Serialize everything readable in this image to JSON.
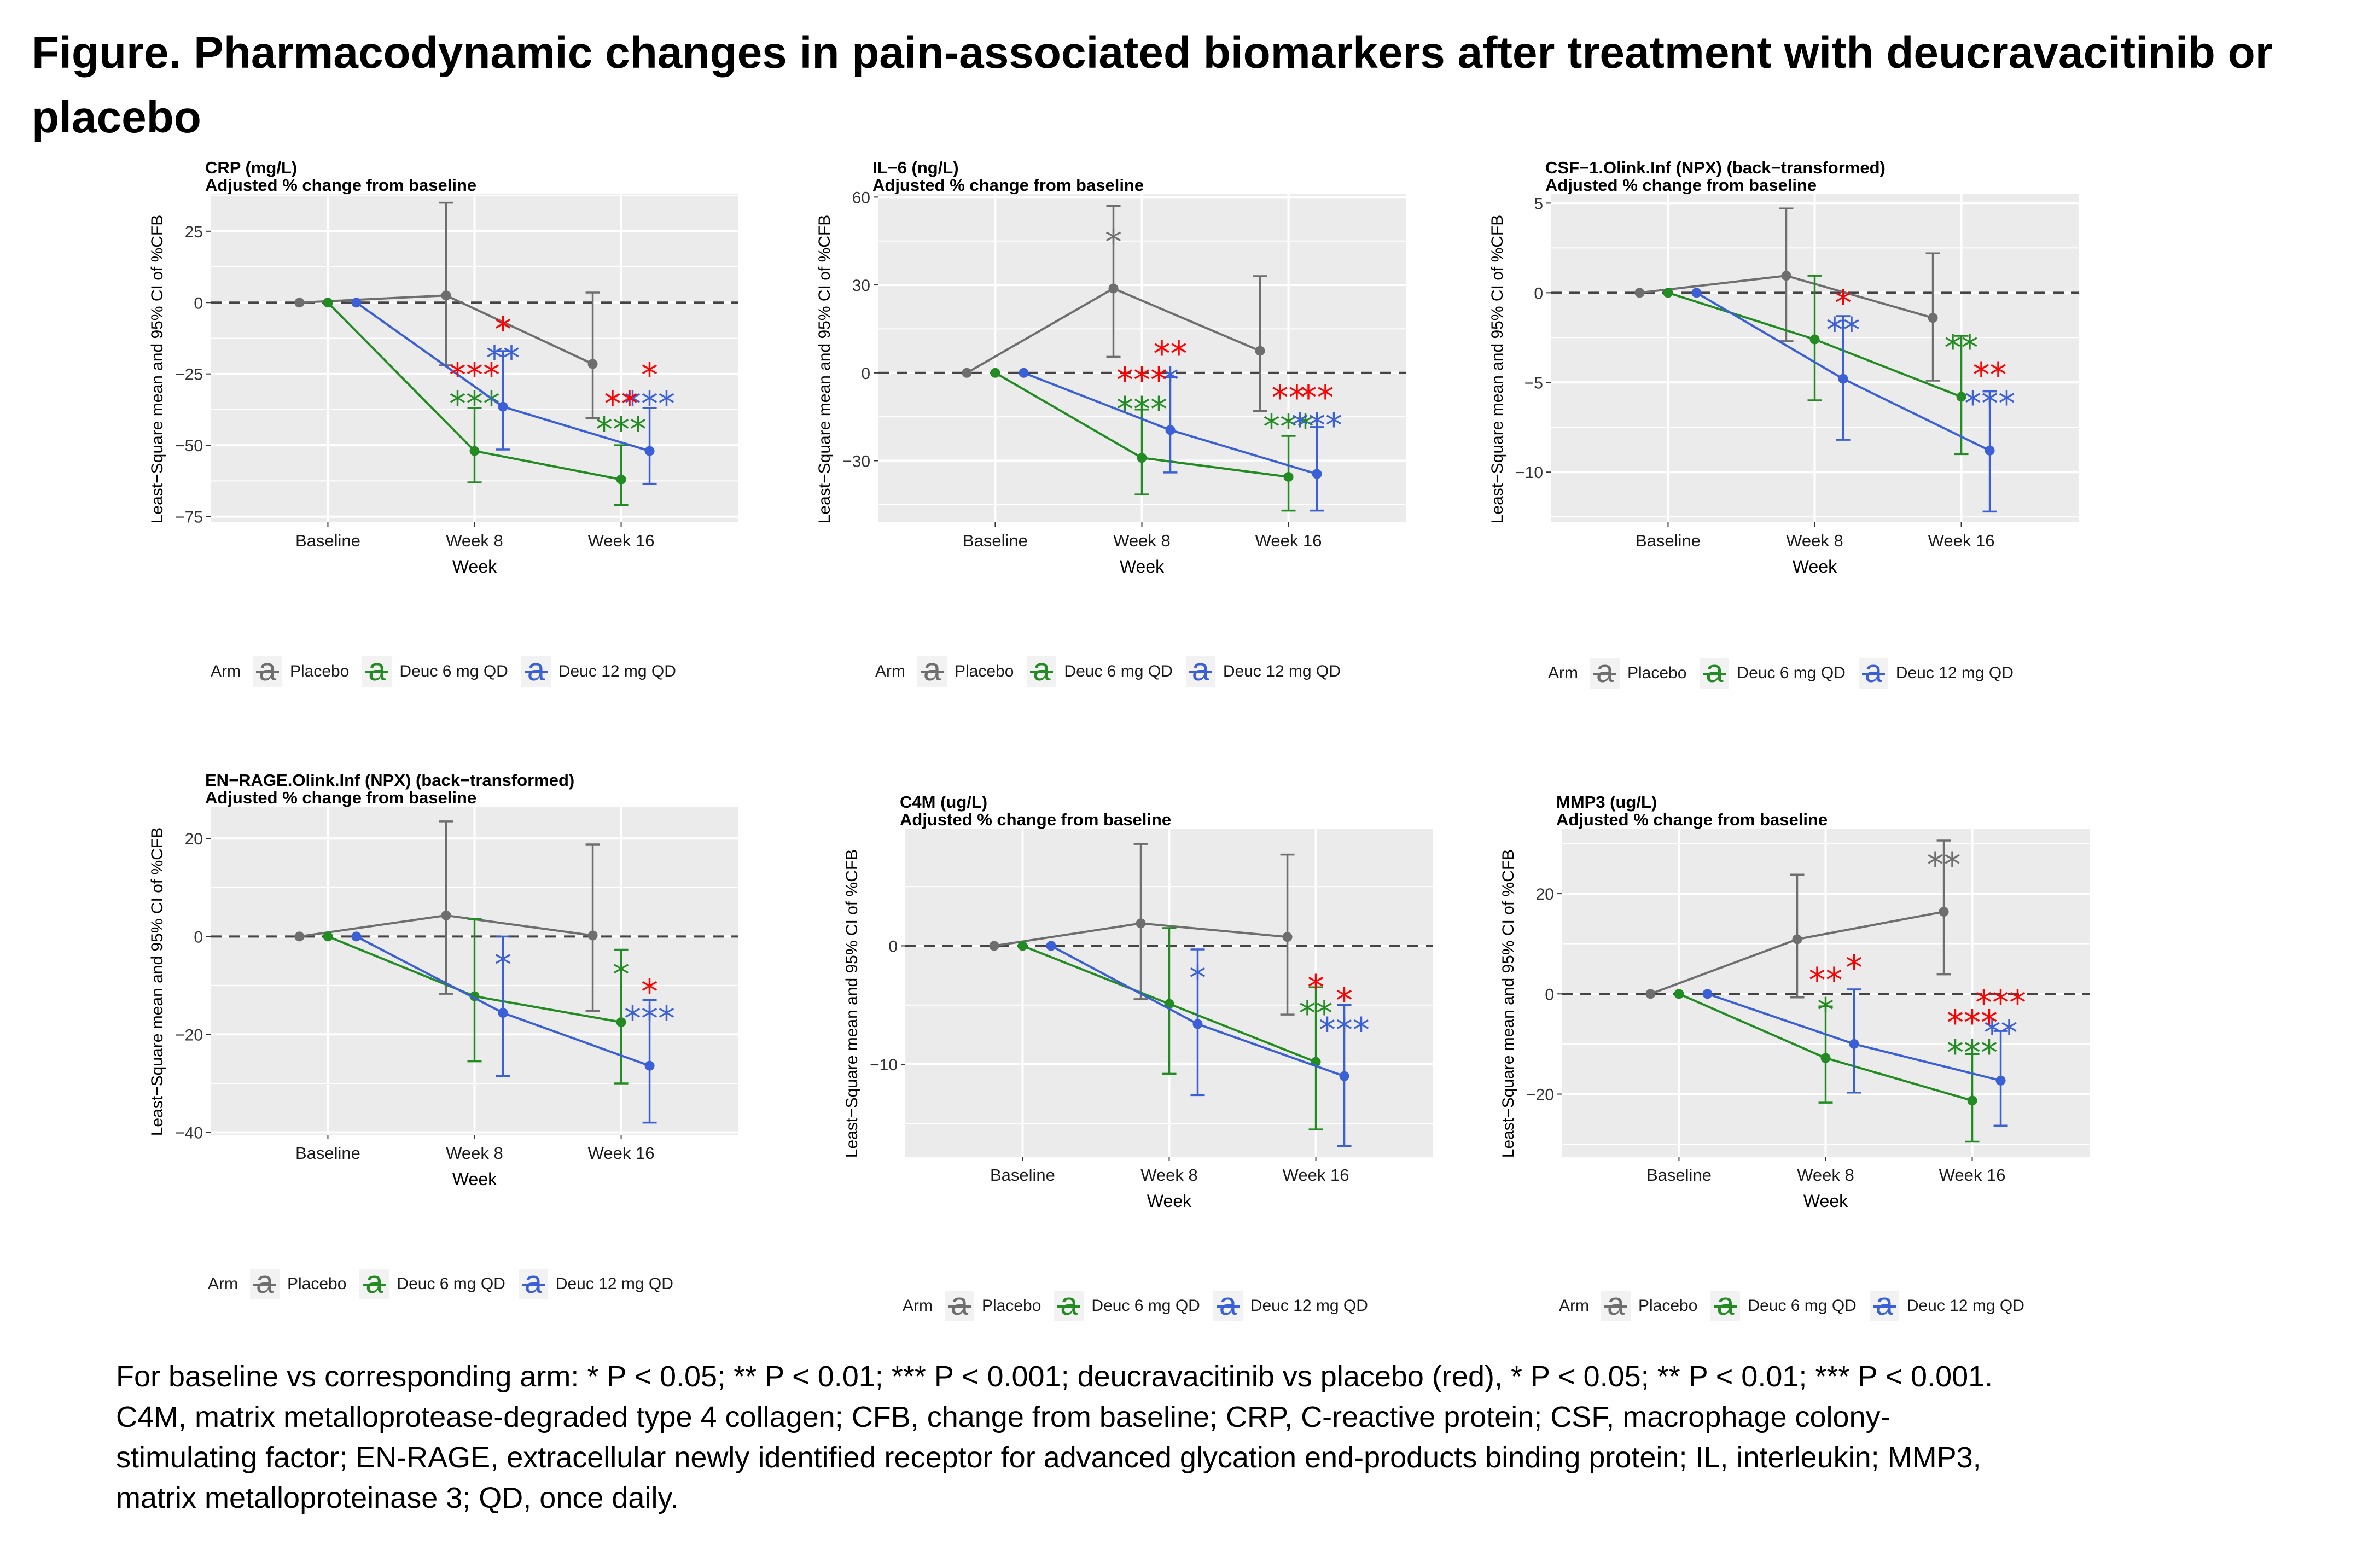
{
  "figure": {
    "title": "Figure. Pharmacodynamic changes in pain-associated biomarkers after treatment with deucravacitinib or placebo",
    "footnote_lines": [
      "For baseline vs corresponding arm: * P < 0.05; ** P < 0.01; *** P < 0.001; deucravacitinib vs placebo (red), * P < 0.05; ** P < 0.01; *** P < 0.001.",
      "C4M, matrix metalloprotease-degraded type 4 collagen; CFB, change from baseline; CRP, C-reactive protein; CSF, macrophage colony-",
      "stimulating factor; EN-RAGE, extracellular newly identified receptor for advanced glycation end-products binding protein; IL, interleukin; MMP3,",
      "matrix metalloproteinase 3; QD, once daily."
    ]
  },
  "legend": {
    "title": "Arm",
    "glyph": "a",
    "entries": [
      {
        "name": "Placebo",
        "color": "#6e6e6e"
      },
      {
        "name": "Deuc 6 mg QD",
        "color": "#228b22"
      },
      {
        "name": "Deuc 12 mg QD",
        "color": "#3b5fd6"
      }
    ]
  },
  "colors": {
    "placebo": "#6e6e6e",
    "deuc6": "#228b22",
    "deuc12": "#3b5fd6",
    "significance_vs_placebo": "#ff0000",
    "panel_bg": "#ebebeb",
    "grid": "#ffffff"
  },
  "chart_data": [
    {
      "type": "line",
      "title": "CRP (mg/L)",
      "subtitle": "Adjusted % change from baseline",
      "xlabel": "Week",
      "ylabel": "Least−Square mean and 95% CI of %CFB",
      "categories": [
        "Baseline",
        "Week 8",
        "Week 16"
      ],
      "ylim": [
        -77,
        38
      ],
      "yticks": [
        -75,
        -50,
        -25,
        0,
        25
      ],
      "ytick_labels": [
        "−75",
        "−50",
        "−25",
        "0",
        "25"
      ],
      "reference_line": 0,
      "series": [
        {
          "name": "Placebo",
          "values": [
            0,
            2.5,
            -21.5
          ],
          "ci_low": [
            null,
            -22,
            -40.5
          ],
          "ci_high": [
            null,
            35,
            3.5
          ],
          "stars": [
            "",
            "",
            ""
          ],
          "star_pos": [
            null,
            null,
            null
          ]
        },
        {
          "name": "Deuc 6 mg QD",
          "values": [
            0,
            -52,
            -62
          ],
          "ci_low": [
            null,
            -63,
            -71
          ],
          "ci_high": [
            null,
            -37,
            -50
          ],
          "stars": [
            "",
            "***",
            "***"
          ],
          "star_pos": [
            null,
            -35,
            -44
          ]
        },
        {
          "name": "Deuc 12 mg QD",
          "values": [
            0,
            -36.5,
            -52
          ],
          "ci_low": [
            null,
            -51.5,
            -63.5
          ],
          "ci_high": [
            null,
            -17,
            -37
          ],
          "stars": [
            "",
            "**",
            "***"
          ],
          "star_pos": [
            null,
            -19,
            -35
          ]
        }
      ],
      "red_stars": [
        {
          "x": "Week 8",
          "arm": "Deuc 6 mg QD",
          "label": "***",
          "y": -25
        },
        {
          "x": "Week 8",
          "arm": "Deuc 12 mg QD",
          "label": "*",
          "y": -9
        },
        {
          "x": "Week 16",
          "arm": "Deuc 6 mg QD",
          "label": "**",
          "y": -35
        },
        {
          "x": "Week 16",
          "arm": "Deuc 12 mg QD",
          "label": "*",
          "y": -25
        }
      ]
    },
    {
      "type": "line",
      "title": "IL−6 (ng/L)",
      "subtitle": "Adjusted % change from baseline",
      "xlabel": "Week",
      "ylabel": "Least−Square mean and 95% CI of %CFB",
      "categories": [
        "Baseline",
        "Week 8",
        "Week 16"
      ],
      "ylim": [
        -51,
        61
      ],
      "yticks": [
        -30,
        0,
        30,
        60
      ],
      "ytick_labels": [
        "−30",
        "0",
        "30",
        "60"
      ],
      "reference_line": 0,
      "series": [
        {
          "name": "Placebo",
          "values": [
            0,
            28.8,
            7.5
          ],
          "ci_low": [
            null,
            5.5,
            -13
          ],
          "ci_high": [
            null,
            57,
            33
          ],
          "stars": [
            "",
            "*",
            ""
          ],
          "star_pos": [
            null,
            45,
            null
          ]
        },
        {
          "name": "Deuc 6 mg QD",
          "values": [
            0,
            -29,
            -35.5
          ],
          "ci_low": [
            null,
            -41.5,
            -47
          ],
          "ci_high": [
            null,
            -12.5,
            -21.5
          ],
          "stars": [
            "",
            "***",
            "***"
          ],
          "star_pos": [
            null,
            -12,
            -18
          ]
        },
        {
          "name": "Deuc 12 mg QD",
          "values": [
            0,
            -19.5,
            -34.5
          ],
          "ci_low": [
            null,
            -34,
            -47
          ],
          "ci_high": [
            null,
            -1.5,
            -18.5
          ],
          "stars": [
            "",
            "*",
            "***"
          ],
          "star_pos": [
            null,
            -2,
            -17.5
          ]
        }
      ],
      "red_stars": [
        {
          "x": "Week 8",
          "arm": "Deuc 6 mg QD",
          "label": "***",
          "y": -2
        },
        {
          "x": "Week 8",
          "arm": "Deuc 12 mg QD",
          "label": "**",
          "y": 7
        },
        {
          "x": "Week 16",
          "arm": "Deuc 6 mg QD",
          "label": "**",
          "y": -8
        },
        {
          "x": "Week 16",
          "arm": "Deuc 12 mg QD",
          "label": "**",
          "y": -8
        }
      ]
    },
    {
      "type": "line",
      "title": "CSF−1.Olink.Inf (NPX) (back−transformed)",
      "subtitle": "Adjusted % change from baseline",
      "xlabel": "Week",
      "ylabel": "Least−Square mean and 95% CI of %CFB",
      "categories": [
        "Baseline",
        "Week 8",
        "Week 16"
      ],
      "ylim": [
        -12.8,
        5.5
      ],
      "yticks": [
        -10,
        -5,
        0,
        5
      ],
      "ytick_labels": [
        "−10",
        "−5",
        "0",
        "5"
      ],
      "reference_line": 0,
      "series": [
        {
          "name": "Placebo",
          "values": [
            0,
            0.95,
            -1.4
          ],
          "ci_low": [
            null,
            -2.7,
            -4.9
          ],
          "ci_high": [
            null,
            4.7,
            2.2
          ],
          "stars": [
            "",
            "",
            ""
          ],
          "star_pos": [
            null,
            null,
            null
          ]
        },
        {
          "name": "Deuc 6 mg QD",
          "values": [
            0,
            -2.6,
            -5.8
          ],
          "ci_low": [
            null,
            -6,
            -9
          ],
          "ci_high": [
            null,
            0.95,
            -2.4
          ],
          "stars": [
            "",
            "",
            "**"
          ],
          "star_pos": [
            null,
            null,
            -3
          ]
        },
        {
          "name": "Deuc 12 mg QD",
          "values": [
            0,
            -4.8,
            -8.8
          ],
          "ci_low": [
            null,
            -8.2,
            -12.2
          ],
          "ci_high": [
            null,
            -1.3,
            -5.5
          ],
          "stars": [
            "",
            "**",
            "***"
          ],
          "star_pos": [
            null,
            -2,
            -6.1
          ]
        }
      ],
      "red_stars": [
        {
          "x": "Week 8",
          "arm": "Deuc 12 mg QD",
          "label": "*",
          "y": -0.5
        },
        {
          "x": "Week 16",
          "arm": "Deuc 12 mg QD",
          "label": "**",
          "y": -4.5
        }
      ]
    },
    {
      "type": "line",
      "title": "EN−RAGE.Olink.Inf (NPX) (back−transformed)",
      "subtitle": "Adjusted % change from baseline",
      "xlabel": "Week",
      "ylabel": "Least−Square mean and 95% CI of %CFB",
      "categories": [
        "Baseline",
        "Week 8",
        "Week 16"
      ],
      "ylim": [
        -40.5,
        26.5
      ],
      "yticks": [
        -40,
        -20,
        0,
        20
      ],
      "ytick_labels": [
        "−40",
        "−20",
        "0",
        "20"
      ],
      "reference_line": 0,
      "series": [
        {
          "name": "Placebo",
          "values": [
            0,
            4.3,
            0.2
          ],
          "ci_low": [
            null,
            -11.7,
            -15.2
          ],
          "ci_high": [
            null,
            23.5,
            18.8
          ],
          "stars": [
            "",
            "",
            ""
          ],
          "star_pos": [
            null,
            null,
            null
          ]
        },
        {
          "name": "Deuc 6 mg QD",
          "values": [
            0,
            -12.2,
            -17.5
          ],
          "ci_low": [
            null,
            -25.5,
            -30
          ],
          "ci_high": [
            null,
            3.6,
            -2.7
          ],
          "stars": [
            "",
            "",
            "*"
          ],
          "star_pos": [
            null,
            null,
            -7.5
          ]
        },
        {
          "name": "Deuc 12 mg QD",
          "values": [
            0,
            -15.6,
            -26.4
          ],
          "ci_low": [
            null,
            -28.5,
            -38
          ],
          "ci_high": [
            null,
            0,
            -13
          ],
          "stars": [
            "",
            "*",
            "***"
          ],
          "star_pos": [
            null,
            -5.5,
            -16.5
          ]
        }
      ],
      "red_stars": [
        {
          "x": "Week 16",
          "arm": "Deuc 12 mg QD",
          "label": "*",
          "y": -11
        }
      ]
    },
    {
      "type": "line",
      "title": "C4M (ug/L)",
      "subtitle": "Adjusted % change from baseline",
      "xlabel": "Week",
      "ylabel": "Least−Square mean and 95% CI of %CFB",
      "categories": [
        "Baseline",
        "Week 8",
        "Week 16"
      ],
      "ylim": [
        -17.8,
        9.9
      ],
      "yticks": [
        -10,
        0
      ],
      "ytick_labels": [
        "−10",
        "0"
      ],
      "reference_line": 0,
      "series": [
        {
          "name": "Placebo",
          "values": [
            0,
            1.9,
            0.75
          ],
          "ci_low": [
            null,
            -4.5,
            -5.8
          ],
          "ci_high": [
            null,
            8.6,
            7.7
          ],
          "stars": [
            "",
            "",
            ""
          ],
          "star_pos": [
            null,
            null,
            null
          ]
        },
        {
          "name": "Deuc 6 mg QD",
          "values": [
            0,
            -4.9,
            -9.8
          ],
          "ci_low": [
            null,
            -10.8,
            -15.5
          ],
          "ci_high": [
            null,
            1.5,
            -3.5
          ],
          "stars": [
            "",
            "",
            "**"
          ],
          "star_pos": [
            null,
            null,
            -5.6
          ]
        },
        {
          "name": "Deuc 12 mg QD",
          "values": [
            0,
            -6.6,
            -11
          ],
          "ci_low": [
            null,
            -12.6,
            -16.9
          ],
          "ci_high": [
            null,
            -0.3,
            -5
          ],
          "stars": [
            "",
            "*",
            "***"
          ],
          "star_pos": [
            null,
            -2.6,
            -7
          ]
        }
      ],
      "red_stars": [
        {
          "x": "Week 16",
          "arm": "Deuc 6 mg QD",
          "label": "*",
          "y": -3.4
        },
        {
          "x": "Week 16",
          "arm": "Deuc 12 mg QD",
          "label": "*",
          "y": -4.5
        }
      ]
    },
    {
      "type": "line",
      "title": "MMP3 (ug/L)",
      "subtitle": "Adjusted % change from baseline",
      "xlabel": "Week",
      "ylabel": "Least−Square mean and 95% CI of %CFB",
      "categories": [
        "Baseline",
        "Week 8",
        "Week 16"
      ],
      "ylim": [
        -32.5,
        33
      ],
      "yticks": [
        -20,
        0,
        20
      ],
      "ytick_labels": [
        "−20",
        "0",
        "20"
      ],
      "reference_line": 0,
      "series": [
        {
          "name": "Placebo",
          "values": [
            0,
            10.9,
            16.4
          ],
          "ci_low": [
            null,
            -0.7,
            3.9
          ],
          "ci_high": [
            null,
            23.8,
            30.6
          ],
          "stars": [
            "",
            "",
            "**"
          ],
          "star_pos": [
            null,
            null,
            26
          ]
        },
        {
          "name": "Deuc 6 mg QD",
          "values": [
            0,
            -12.8,
            -21.3
          ],
          "ci_low": [
            null,
            -21.7,
            -29.5
          ],
          "ci_high": [
            null,
            -2.5,
            -12
          ],
          "stars": [
            "",
            "*",
            "***"
          ],
          "star_pos": [
            null,
            -3,
            -11.5
          ]
        },
        {
          "name": "Deuc 12 mg QD",
          "values": [
            0,
            -10,
            -17.3
          ],
          "ci_low": [
            null,
            -19.7,
            -26.3
          ],
          "ci_high": [
            null,
            0.9,
            -7.4
          ],
          "stars": [
            "",
            "",
            "**"
          ],
          "star_pos": [
            null,
            null,
            -7.5
          ]
        }
      ],
      "red_stars": [
        {
          "x": "Week 8",
          "arm": "Deuc 6 mg QD",
          "label": "**",
          "y": 3
        },
        {
          "x": "Week 8",
          "arm": "Deuc 12 mg QD",
          "label": "*",
          "y": 5.5
        },
        {
          "x": "Week 16",
          "arm": "Deuc 6 mg QD",
          "label": "***",
          "y": -5.5
        },
        {
          "x": "Week 16",
          "arm": "Deuc 12 mg QD",
          "label": "***",
          "y": -1.5
        }
      ]
    }
  ]
}
